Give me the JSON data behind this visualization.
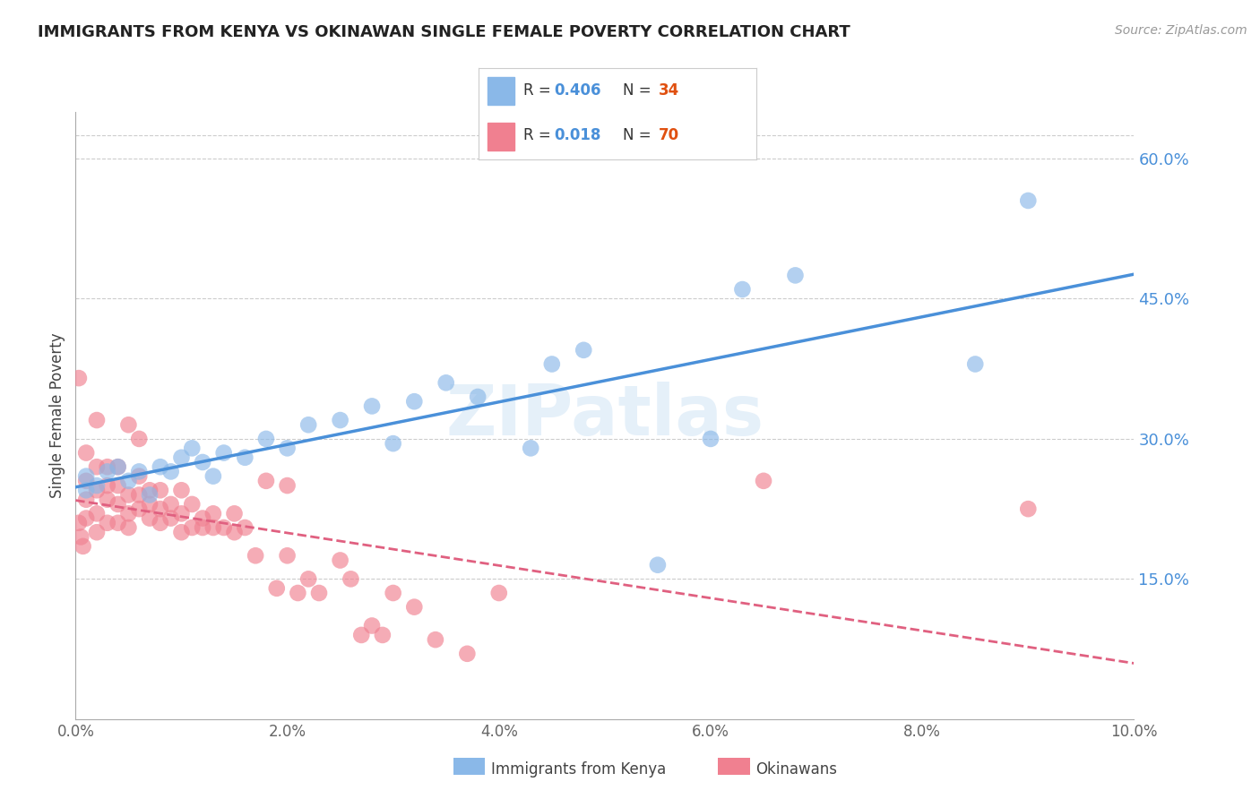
{
  "title": "IMMIGRANTS FROM KENYA VS OKINAWAN SINGLE FEMALE POVERTY CORRELATION CHART",
  "source": "Source: ZipAtlas.com",
  "ylabel": "Single Female Poverty",
  "legend_r_blue": "R = ",
  "legend_r_blue_val": "0.406",
  "legend_n_blue": "N = ",
  "legend_n_blue_val": "34",
  "legend_r_pink": "R = ",
  "legend_r_pink_val": "0.018",
  "legend_n_pink": "N = ",
  "legend_n_pink_val": "70",
  "xlim": [
    0.0,
    0.1
  ],
  "ylim": [
    0.0,
    0.65
  ],
  "yticks_right": [
    0.15,
    0.3,
    0.45,
    0.6
  ],
  "ytick_labels_right": [
    "15.0%",
    "30.0%",
    "45.0%",
    "60.0%"
  ],
  "xticks": [
    0.0,
    0.02,
    0.04,
    0.06,
    0.08,
    0.1
  ],
  "xtick_labels": [
    "0.0%",
    "2.0%",
    "4.0%",
    "6.0%",
    "8.0%",
    "10.0%"
  ],
  "color_blue": "#8ab8e8",
  "color_pink": "#f08090",
  "color_blue_line": "#4a90d9",
  "color_pink_line": "#e06080",
  "color_n_orange": "#e05010",
  "watermark_text": "ZIPatlas",
  "kenya_x": [
    0.001,
    0.001,
    0.002,
    0.003,
    0.004,
    0.005,
    0.006,
    0.007,
    0.008,
    0.009,
    0.01,
    0.011,
    0.012,
    0.013,
    0.014,
    0.016,
    0.018,
    0.02,
    0.022,
    0.025,
    0.028,
    0.03,
    0.032,
    0.035,
    0.038,
    0.043,
    0.045,
    0.048,
    0.055,
    0.06,
    0.063,
    0.068,
    0.085,
    0.09
  ],
  "kenya_y": [
    0.245,
    0.26,
    0.25,
    0.265,
    0.27,
    0.255,
    0.265,
    0.24,
    0.27,
    0.265,
    0.28,
    0.29,
    0.275,
    0.26,
    0.285,
    0.28,
    0.3,
    0.29,
    0.315,
    0.32,
    0.335,
    0.295,
    0.34,
    0.36,
    0.345,
    0.29,
    0.38,
    0.395,
    0.165,
    0.3,
    0.46,
    0.475,
    0.38,
    0.555
  ],
  "okinawa_x": [
    0.0003,
    0.0003,
    0.0005,
    0.0007,
    0.001,
    0.001,
    0.001,
    0.001,
    0.002,
    0.002,
    0.002,
    0.002,
    0.002,
    0.003,
    0.003,
    0.003,
    0.003,
    0.004,
    0.004,
    0.004,
    0.004,
    0.005,
    0.005,
    0.005,
    0.005,
    0.006,
    0.006,
    0.006,
    0.006,
    0.007,
    0.007,
    0.007,
    0.008,
    0.008,
    0.008,
    0.009,
    0.009,
    0.01,
    0.01,
    0.01,
    0.011,
    0.011,
    0.012,
    0.012,
    0.013,
    0.013,
    0.014,
    0.015,
    0.015,
    0.016,
    0.017,
    0.018,
    0.019,
    0.02,
    0.02,
    0.021,
    0.022,
    0.023,
    0.025,
    0.026,
    0.027,
    0.028,
    0.029,
    0.03,
    0.032,
    0.034,
    0.037,
    0.04,
    0.065,
    0.09
  ],
  "okinawa_y": [
    0.365,
    0.21,
    0.195,
    0.185,
    0.215,
    0.235,
    0.255,
    0.285,
    0.2,
    0.22,
    0.245,
    0.27,
    0.32,
    0.21,
    0.235,
    0.25,
    0.27,
    0.21,
    0.23,
    0.25,
    0.27,
    0.205,
    0.22,
    0.24,
    0.315,
    0.225,
    0.24,
    0.26,
    0.3,
    0.215,
    0.23,
    0.245,
    0.21,
    0.225,
    0.245,
    0.215,
    0.23,
    0.2,
    0.22,
    0.245,
    0.205,
    0.23,
    0.205,
    0.215,
    0.205,
    0.22,
    0.205,
    0.2,
    0.22,
    0.205,
    0.175,
    0.255,
    0.14,
    0.175,
    0.25,
    0.135,
    0.15,
    0.135,
    0.17,
    0.15,
    0.09,
    0.1,
    0.09,
    0.135,
    0.12,
    0.085,
    0.07,
    0.135,
    0.255,
    0.225
  ]
}
